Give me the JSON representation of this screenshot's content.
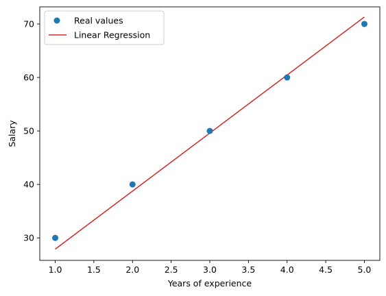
{
  "chart_data": {
    "type": "scatter",
    "xlabel": "Years of experience",
    "ylabel": "Salary",
    "xlim": [
      0.8,
      5.2
    ],
    "ylim": [
      25.8,
      73.2
    ],
    "xticks": [
      "1.0",
      "1.5",
      "2.0",
      "2.5",
      "3.0",
      "3.5",
      "4.0",
      "4.5",
      "5.0"
    ],
    "yticks": [
      "30",
      "40",
      "50",
      "60",
      "70"
    ],
    "grid": false,
    "legend_position": "top-left",
    "series": [
      {
        "name": "Real values",
        "kind": "scatter",
        "color": "#1f77b4",
        "x": [
          1,
          2,
          3,
          4,
          5
        ],
        "y": [
          30,
          40,
          50,
          60,
          70
        ]
      },
      {
        "name": "Linear Regression",
        "kind": "line",
        "color": "#d62728",
        "x": [
          1,
          5
        ],
        "y": [
          27.9,
          71.3
        ]
      }
    ]
  }
}
